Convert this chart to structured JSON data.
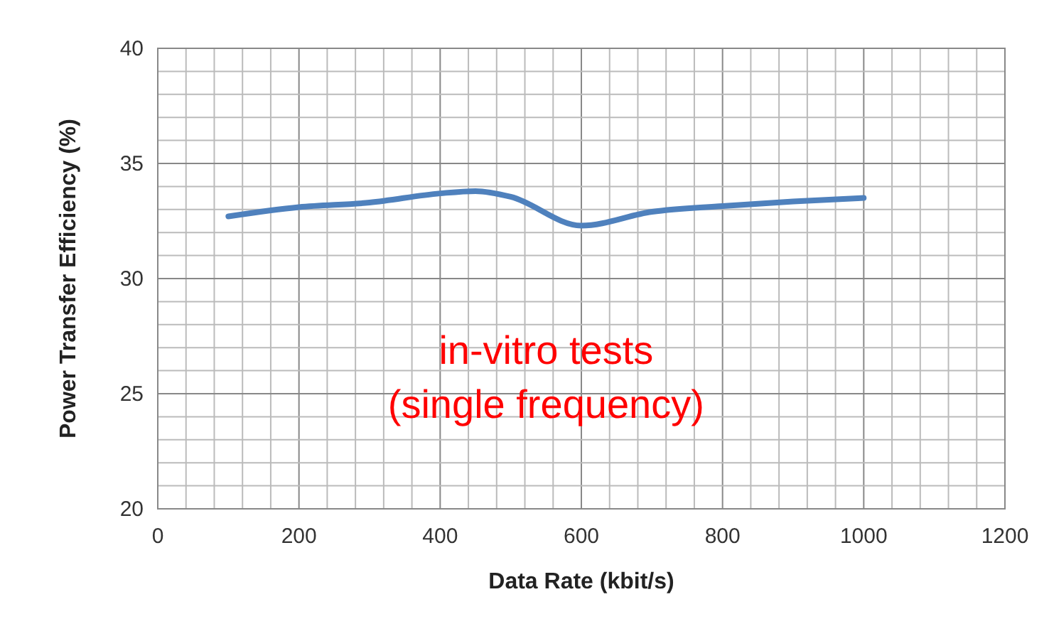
{
  "chart_data": {
    "type": "line",
    "xlabel": "Data Rate (kbit/s)",
    "ylabel": "Power Transfer Efficiency (%)",
    "x": [
      100,
      200,
      300,
      400,
      450,
      500,
      600,
      700,
      800,
      900,
      1000
    ],
    "series": [
      {
        "color": "#4f81bd",
        "values": [
          32.7,
          33.1,
          33.3,
          33.7,
          33.8,
          33.55,
          32.3,
          32.9,
          33.15,
          33.35,
          33.5
        ]
      }
    ],
    "xlim": [
      0,
      1200
    ],
    "ylim": [
      20,
      40
    ],
    "xticks": [
      0,
      {
        "value": 40,
        "label": null
      },
      {
        "value": 80,
        "label": null
      },
      {
        "value": 120,
        "label": null
      },
      {
        "value": 160,
        "label": null
      },
      200,
      {
        "value": 240,
        "label": null
      },
      {
        "value": 280,
        "label": null
      },
      {
        "value": 320,
        "label": null
      },
      {
        "value": 360,
        "label": null
      },
      400,
      {
        "value": 440,
        "label": null
      },
      {
        "value": 480,
        "label": null
      },
      {
        "value": 520,
        "label": null
      },
      {
        "value": 560,
        "label": null
      },
      600,
      {
        "value": 640,
        "label": null
      },
      {
        "value": 680,
        "label": null
      },
      {
        "value": 720,
        "label": null
      },
      {
        "value": 760,
        "label": null
      },
      800,
      {
        "value": 840,
        "label": null
      },
      {
        "value": 880,
        "label": null
      },
      {
        "value": 920,
        "label": null
      },
      {
        "value": 960,
        "label": null
      },
      1000,
      {
        "value": 1040,
        "label": null
      },
      {
        "value": 1080,
        "label": null
      },
      {
        "value": 1120,
        "label": null
      },
      {
        "value": 1160,
        "label": null
      },
      1200
    ],
    "yticks": [
      20,
      {
        "value": 21,
        "label": null
      },
      {
        "value": 22,
        "label": null
      },
      {
        "value": 23,
        "label": null
      },
      {
        "value": 24,
        "label": null
      },
      25,
      {
        "value": 26,
        "label": null
      },
      {
        "value": 27,
        "label": null
      },
      {
        "value": 28,
        "label": null
      },
      {
        "value": 29,
        "label": null
      },
      30,
      {
        "value": 31,
        "label": null
      },
      {
        "value": 32,
        "label": null
      },
      {
        "value": 33,
        "label": null
      },
      {
        "value": 34,
        "label": null
      },
      35,
      {
        "value": 36,
        "label": null
      },
      {
        "value": 37,
        "label": null
      },
      {
        "value": 38,
        "label": null
      },
      {
        "value": 39,
        "label": null
      },
      40
    ],
    "grid": true,
    "marker": "none",
    "line_style": "solid",
    "annotations": [
      "in-vitro tests\n(single frequency)"
    ]
  }
}
